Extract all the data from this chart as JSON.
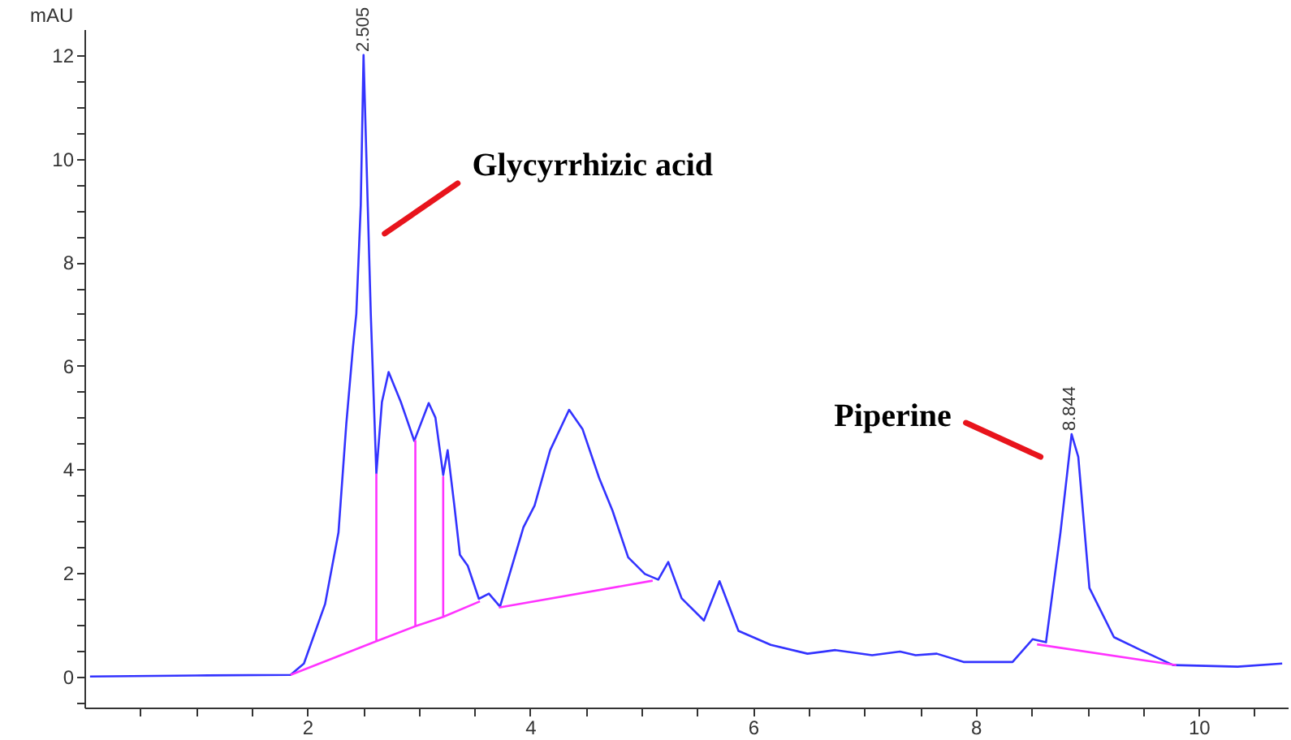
{
  "chart_data": {
    "type": "line",
    "ylabel": "mAU",
    "series": [
      {
        "color": "#3333ff",
        "x": [
          0.05,
          1.0,
          1.85,
          1.97,
          2.16,
          2.28,
          2.35,
          2.41,
          2.44,
          2.48,
          2.505,
          2.57,
          2.62,
          2.67,
          2.73,
          2.84,
          2.96,
          3.09,
          3.15,
          3.22,
          3.26,
          3.32,
          3.37,
          3.44,
          3.54,
          3.63,
          3.73,
          3.94,
          4.04,
          4.18,
          4.35,
          4.47,
          4.62,
          4.74,
          4.88,
          5.03,
          5.15,
          5.24,
          5.36,
          5.56,
          5.7,
          5.87,
          6.16,
          6.49,
          6.74,
          7.07,
          7.32,
          7.46,
          7.65,
          7.89,
          8.33,
          8.51,
          8.63,
          8.76,
          8.86,
          8.92,
          9.02,
          9.24,
          9.48,
          9.77,
          10.35,
          10.75
        ],
        "values": [
          0.0,
          0.02,
          0.03,
          0.25,
          1.4,
          2.78,
          4.87,
          6.36,
          7.0,
          9.1,
          12.0,
          7.0,
          3.92,
          5.3,
          5.88,
          5.3,
          4.55,
          5.28,
          5.0,
          3.89,
          4.37,
          3.3,
          2.35,
          2.14,
          1.5,
          1.6,
          1.35,
          2.88,
          3.3,
          4.37,
          5.15,
          4.78,
          3.83,
          3.2,
          2.3,
          1.98,
          1.87,
          2.21,
          1.51,
          1.08,
          1.84,
          0.88,
          0.61,
          0.44,
          0.51,
          0.41,
          0.48,
          0.41,
          0.44,
          0.28,
          0.28,
          0.72,
          0.66,
          2.78,
          4.68,
          4.24,
          1.71,
          0.76,
          0.51,
          0.22,
          0.19,
          0.25
        ]
      },
      {
        "color": "#ff33ff",
        "x": [
          1.85,
          2.62,
          2.62,
          2.62,
          2.97,
          2.97,
          2.97,
          3.22,
          3.22,
          3.22,
          3.55
        ],
        "values": [
          0.03,
          0.68,
          3.9,
          0.68,
          0.97,
          4.55,
          0.97,
          1.15,
          3.85,
          1.15,
          1.45
        ]
      },
      {
        "color": "#ff33ff",
        "x": [
          3.72,
          5.1
        ],
        "values": [
          1.33,
          1.85
        ]
      },
      {
        "color": "#ff33ff",
        "x": [
          8.55,
          9.8
        ],
        "values": [
          0.62,
          0.22
        ]
      }
    ],
    "annotations": [
      {
        "text": "2.505",
        "x": 2.505,
        "y": 12.0
      },
      {
        "text": "8.844",
        "x": 8.844,
        "y": 4.68
      },
      "Glycyrrhizic acid",
      "Piperine"
    ],
    "xlim": [
      0,
      10.8
    ],
    "xticks": [
      {
        "value": 0.5,
        "label": null
      },
      {
        "value": 1,
        "label": null
      },
      {
        "value": 1.5,
        "label": null
      },
      2,
      {
        "value": 2.5,
        "label": null
      },
      {
        "value": 3,
        "label": null
      },
      {
        "value": 3.5,
        "label": null
      },
      4,
      {
        "value": 4.5,
        "label": null
      },
      {
        "value": 5,
        "label": null
      },
      {
        "value": 5.5,
        "label": null
      },
      6,
      {
        "value": 6.5,
        "label": null
      },
      {
        "value": 7,
        "label": null
      },
      {
        "value": 7.5,
        "label": null
      },
      8,
      {
        "value": 8.5,
        "label": null
      },
      {
        "value": 9,
        "label": null
      },
      {
        "value": 9.5,
        "label": null
      },
      10,
      {
        "value": 10.5,
        "label": null
      }
    ],
    "ylim": [
      -0.6,
      12.5
    ],
    "yticks": [
      {
        "value": -0.5,
        "label": null
      },
      0,
      {
        "value": 0.5,
        "label": null
      },
      {
        "value": 1,
        "label": null
      },
      {
        "value": 1.5,
        "label": null
      },
      2,
      {
        "value": 2.5,
        "label": null
      },
      {
        "value": 3,
        "label": null
      },
      {
        "value": 3.5,
        "label": null
      },
      4,
      {
        "value": 4.5,
        "label": null
      },
      {
        "value": 5,
        "label": null
      },
      {
        "value": 5.5,
        "label": null
      },
      6,
      {
        "value": 6.5,
        "label": null
      },
      {
        "value": 7,
        "label": null
      },
      {
        "value": 7.5,
        "label": null
      },
      8,
      {
        "value": 8.5,
        "label": null
      },
      {
        "value": 9,
        "label": null
      },
      {
        "value": 9.5,
        "label": null
      },
      10,
      {
        "value": 10.5,
        "label": null
      },
      {
        "value": 11,
        "label": null
      },
      {
        "value": 11.5,
        "label": null
      },
      12
    ],
    "grid": false,
    "marker": "none",
    "line_style": "solid"
  }
}
